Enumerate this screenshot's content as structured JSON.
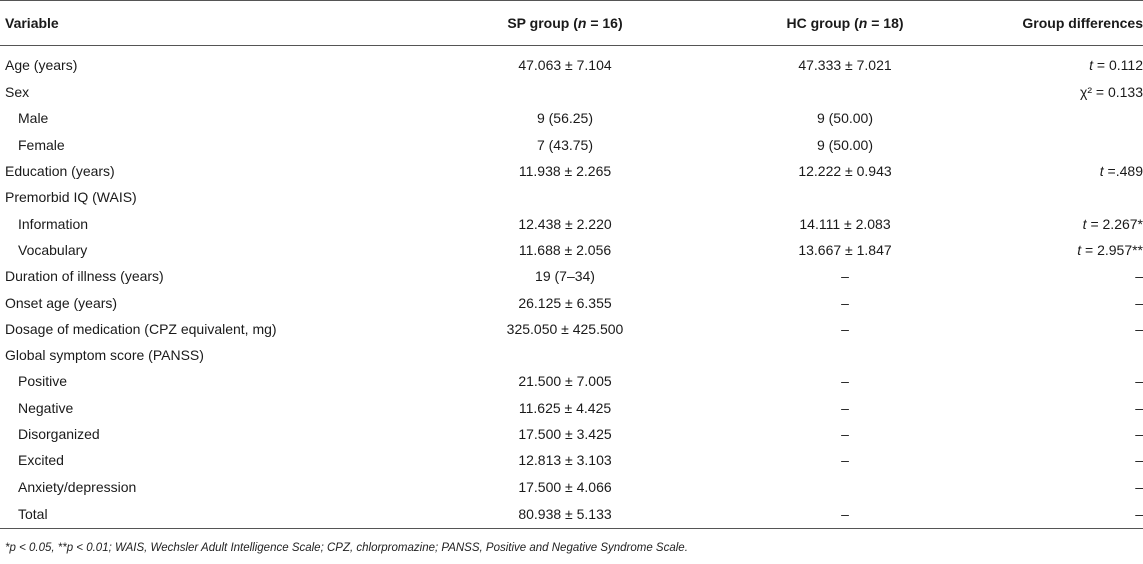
{
  "header": {
    "variable": "Variable",
    "sp_prefix": "SP group (",
    "sp_n": "n",
    "sp_suffix": " = 16)",
    "hc_prefix": "HC group (",
    "hc_n": "n",
    "hc_suffix": " = 18)",
    "diff": "Group differences"
  },
  "rows": [
    {
      "label": "Age (years)",
      "sp": "47.063 ± 7.104",
      "hc": "47.333 ± 7.021",
      "diff_sym": "t",
      "diff_val": " = 0.112"
    },
    {
      "label": "Sex",
      "sp": "",
      "hc": "",
      "diff_sym": "",
      "diff_val": "χ² = 0.133"
    },
    {
      "label": "Male",
      "sp": "9 (56.25)",
      "hc": "9 (50.00)",
      "diff_sym": "",
      "diff_val": ""
    },
    {
      "label": "Female",
      "sp": "7 (43.75)",
      "hc": "9 (50.00)",
      "diff_sym": "",
      "diff_val": ""
    },
    {
      "label": "Education (years)",
      "sp": "11.938 ± 2.265",
      "hc": "12.222 ± 0.943",
      "diff_sym": "t",
      "diff_val": " =.489"
    },
    {
      "label": "Premorbid IQ (WAIS)",
      "sp": "",
      "hc": "",
      "diff_sym": "",
      "diff_val": ""
    },
    {
      "label": "Information",
      "sp": "12.438 ± 2.220",
      "hc": "14.111 ± 2.083",
      "diff_sym": "t",
      "diff_val": " = 2.267*"
    },
    {
      "label": "Vocabulary",
      "sp": "11.688 ± 2.056",
      "hc": "13.667 ± 1.847",
      "diff_sym": "t",
      "diff_val": " = 2.957**"
    },
    {
      "label": "Duration of illness (years)",
      "sp": "19 (7–34)",
      "hc": "–",
      "diff_sym": "",
      "diff_val": "–"
    },
    {
      "label": "Onset age (years)",
      "sp": "26.125 ± 6.355",
      "hc": "–",
      "diff_sym": "",
      "diff_val": "–"
    },
    {
      "label": "Dosage of medication (CPZ equivalent, mg)",
      "sp": "325.050 ± 425.500",
      "hc": "–",
      "diff_sym": "",
      "diff_val": "–"
    },
    {
      "label": "Global symptom score (PANSS)",
      "sp": "",
      "hc": "",
      "diff_sym": "",
      "diff_val": ""
    },
    {
      "label": "Positive",
      "sp": "21.500 ± 7.005",
      "hc": "–",
      "diff_sym": "",
      "diff_val": "–"
    },
    {
      "label": "Negative",
      "sp": "11.625 ± 4.425",
      "hc": "–",
      "diff_sym": "",
      "diff_val": "–"
    },
    {
      "label": "Disorganized",
      "sp": "17.500 ± 3.425",
      "hc": "–",
      "diff_sym": "",
      "diff_val": "–"
    },
    {
      "label": "Excited",
      "sp": "12.813 ± 3.103",
      "hc": "–",
      "diff_sym": "",
      "diff_val": "–"
    },
    {
      "label": "Anxiety/depression",
      "sp": "17.500 ± 4.066",
      "hc": "",
      "diff_sym": "",
      "diff_val": "–"
    },
    {
      "label": "Total",
      "sp": "80.938 ± 5.133",
      "hc": "–",
      "diff_sym": "",
      "diff_val": "–"
    }
  ],
  "footnote": "*p < 0.05, **p < 0.01; WAIS, Wechsler Adult Intelligence Scale; CPZ, chlorpromazine; PANSS, Positive and Negative Syndrome Scale."
}
